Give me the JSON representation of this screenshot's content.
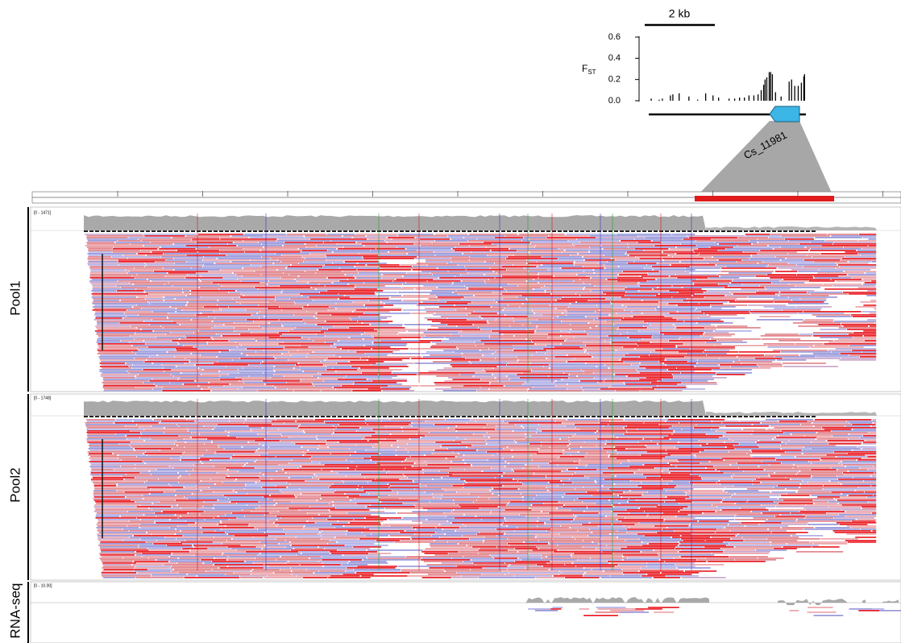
{
  "fst_panel": {
    "scale_label": "2 kb",
    "y_label": "F",
    "y_label_sub": "ST",
    "ylim": [
      0,
      0.6
    ],
    "yticks": [
      0.6,
      0.4,
      0.2,
      {
        "value": 0,
        "label": "0.0"
      }
    ],
    "xlim": [
      0,
      4.5
    ],
    "x": [
      0.07,
      0.3,
      0.39,
      0.62,
      0.69,
      0.87,
      1.15,
      1.4,
      1.63,
      1.84,
      2.0,
      2.3,
      2.46,
      2.6,
      2.74,
      2.87,
      3.01,
      3.13,
      3.22,
      3.29,
      3.33,
      3.38,
      3.45,
      3.49,
      3.54,
      3.63,
      3.79,
      4.02,
      4.09,
      4.18,
      4.28,
      4.37,
      4.44,
      4.46
    ],
    "values": [
      0.02,
      0.01,
      0.02,
      0.05,
      0.06,
      0.07,
      0.04,
      0.01,
      0.07,
      0.05,
      0.03,
      0.02,
      0.02,
      0.03,
      0.03,
      0.05,
      0.05,
      0.06,
      0.1,
      0.15,
      0.2,
      0.22,
      0.27,
      0.27,
      0.25,
      0.08,
      0.04,
      0.18,
      0.2,
      0.14,
      0.14,
      0.17,
      0.23,
      0.25
    ],
    "gene_label": "Cs_11981"
  },
  "tracks": [
    {
      "name": "Pool1",
      "range_label": "[0 - 1471]"
    },
    {
      "name": "Pool2",
      "range_label": "[0 - 1748]"
    },
    {
      "name": "RNA-seq",
      "range_label": "[0 - 10.00]"
    }
  ]
}
